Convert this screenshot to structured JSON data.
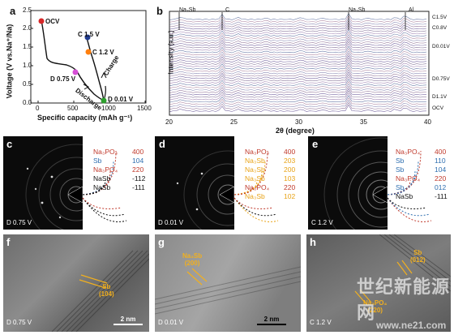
{
  "panel_a": {
    "label": "a",
    "ylabel": "Voltage (V vs.Na⁺/Na)",
    "xlabel": "Specific capacity (mAh g⁻¹)",
    "x_ticks": [
      "0",
      "500",
      "1000",
      "1500"
    ],
    "y_ticks": [
      "0.0",
      "0.5",
      "1.0",
      "1.5",
      "2.0",
      "2.5"
    ],
    "point_labels": [
      "OCV",
      "C 1.5 V",
      "C 1.2 V",
      "D 0.75 V",
      "D 0.01 V"
    ],
    "curve_labels": [
      "Charge",
      "Discharge"
    ]
  },
  "panel_b": {
    "label": "b",
    "ylabel": "Intensity (a.u.)",
    "xlabel": "2θ (degree)",
    "x_ticks": [
      "20",
      "25",
      "30",
      "35",
      "40"
    ],
    "peak_labels": [
      "Na₃Sb",
      "C",
      "Na₃Sb",
      "Al"
    ],
    "state_labels": [
      "C1.5V",
      "C0.8V",
      "D0.01V",
      "D0.75V",
      "D1.1V",
      "OCV"
    ]
  },
  "panel_c": {
    "label": "c",
    "caption": "D 0.75 V",
    "phases": [
      {
        "name": "Na₃PO₄",
        "hkl": "400",
        "color": "red"
      },
      {
        "name": "Sb",
        "hkl": "104",
        "color": "blue"
      },
      {
        "name": "Na₃PO₄",
        "hkl": "220",
        "color": "red"
      },
      {
        "name": "NaSb",
        "hkl": "-112",
        "color": "black"
      },
      {
        "name": "NaSb",
        "hkl": "-111",
        "color": "black"
      }
    ]
  },
  "panel_d": {
    "label": "d",
    "caption": "D 0.01 V",
    "phases": [
      {
        "name": "Na₃PO₄",
        "hkl": "400",
        "color": "red"
      },
      {
        "name": "Na₃Sb",
        "hkl": "203",
        "color": "orange"
      },
      {
        "name": "Na₃Sb",
        "hkl": "200",
        "color": "orange"
      },
      {
        "name": "Na₃Sb",
        "hkl": "103",
        "color": "orange"
      },
      {
        "name": "Na₃PO₄",
        "hkl": "220",
        "color": "red"
      },
      {
        "name": "Na₃Sb",
        "hkl": "102",
        "color": "orange"
      }
    ]
  },
  "panel_e": {
    "label": "e",
    "caption": "C 1.2 V",
    "phases": [
      {
        "name": "Na₃PO₄",
        "hkl": "400",
        "color": "red"
      },
      {
        "name": "Sb",
        "hkl": "110",
        "color": "blue"
      },
      {
        "name": "Sb",
        "hkl": "104",
        "color": "blue"
      },
      {
        "name": "Na₃PO₄",
        "hkl": "220",
        "color": "red"
      },
      {
        "name": "Sb",
        "hkl": "012",
        "color": "blue"
      },
      {
        "name": "NaSb",
        "hkl": "-111",
        "color": "black"
      }
    ]
  },
  "panel_f": {
    "label": "f",
    "caption": "D 0.75 V",
    "lattice_phase": "Sb",
    "lattice_hkl": "(104)",
    "scale": "2 nm"
  },
  "panel_g": {
    "label": "g",
    "caption": "D 0.01 V",
    "lattice_phase": "Na₃Sb",
    "lattice_hkl": "(200)",
    "scale": "2 nm"
  },
  "panel_h": {
    "label": "h",
    "caption": "C 1.2 V",
    "lattice_phase": "Sb",
    "lattice_hkl": "(012)",
    "lattice2_phase": "Na₃PO₄",
    "lattice2_hkl": "(220)",
    "scale": "2 nm"
  },
  "watermark": {
    "cn": "世纪新能源网",
    "url": "www.ne21.com"
  },
  "colors": {
    "red": "#c0392b",
    "blue": "#2f6fb0",
    "orange": "#e8a317",
    "black": "#111111"
  }
}
